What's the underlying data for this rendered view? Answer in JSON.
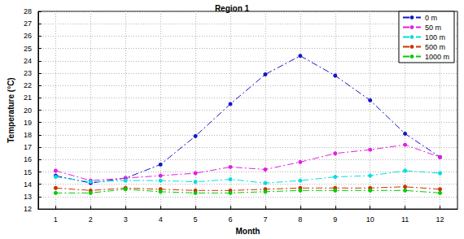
{
  "chart_data": {
    "type": "line",
    "title": "Region 1",
    "x_label": "Month",
    "y_label": "Temperature (°C)",
    "x": [
      1,
      2,
      3,
      4,
      5,
      6,
      7,
      8,
      9,
      10,
      11,
      12
    ],
    "series": [
      {
        "name": "0 m",
        "color": "#1515c8",
        "values": [
          14.7,
          14.1,
          14.5,
          15.6,
          17.9,
          20.5,
          22.9,
          24.4,
          22.8,
          20.8,
          18.1,
          16.2
        ]
      },
      {
        "name": "50 m",
        "color": "#e020e0",
        "values": [
          15.1,
          14.3,
          14.5,
          14.7,
          14.9,
          15.4,
          15.2,
          15.8,
          16.5,
          16.8,
          17.2,
          16.2
        ]
      },
      {
        "name": "100 m",
        "color": "#00dede",
        "values": [
          14.6,
          14.2,
          14.3,
          14.3,
          14.2,
          14.4,
          14.1,
          14.3,
          14.6,
          14.7,
          15.1,
          14.9
        ]
      },
      {
        "name": "500 m",
        "color": "#cc3300",
        "values": [
          13.7,
          13.5,
          13.7,
          13.6,
          13.5,
          13.5,
          13.6,
          13.7,
          13.7,
          13.7,
          13.8,
          13.6
        ]
      },
      {
        "name": "1000 m",
        "color": "#00cc00",
        "values": [
          13.3,
          13.3,
          13.6,
          13.4,
          13.3,
          13.3,
          13.4,
          13.5,
          13.5,
          13.5,
          13.5,
          13.3
        ]
      }
    ],
    "xlim": [
      0.5,
      12.5
    ],
    "xticks": [
      1,
      2,
      3,
      4,
      5,
      6,
      7,
      8,
      9,
      10,
      11,
      12
    ],
    "ylim": [
      12,
      28
    ],
    "yticks": [
      12,
      13,
      14,
      15,
      16,
      17,
      18,
      19,
      20,
      21,
      22,
      23,
      24,
      25,
      26,
      27,
      28
    ],
    "grid": true,
    "legend": "upper right",
    "marker": "circle",
    "line_style": "dashdot"
  }
}
